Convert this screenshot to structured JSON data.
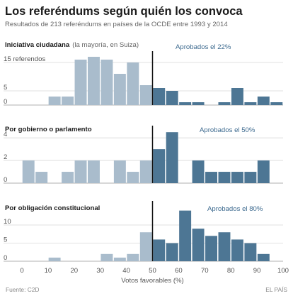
{
  "title": "Los referéndums según quién los convoca",
  "subtitle": "Resultados de 213 referéndums en países de la OCDE entre 1993 y 2014",
  "source": "Fuente: C2D",
  "brand": "EL PAÍS",
  "colors": {
    "below": "#a9bccc",
    "above": "#4d7694"
  },
  "chart_data": [
    {
      "type": "bar",
      "panel_title": "Iniciativa ciudadana",
      "panel_note": "(la mayoría, en Suiza)",
      "annotation": "Aprobados el 22%",
      "yticks": [
        0,
        5,
        15
      ],
      "ytick_labels": [
        "0",
        "5",
        "15 referendos"
      ],
      "ylim": [
        0,
        17.5
      ],
      "threshold": 50,
      "bin_width": 5,
      "bin_starts": [
        10,
        15,
        20,
        25,
        30,
        35,
        40,
        45,
        50,
        55,
        60,
        65,
        70,
        75,
        80,
        85,
        90,
        95
      ],
      "values": [
        3,
        3,
        16,
        17,
        16,
        11,
        15,
        7,
        6,
        5,
        1,
        1,
        0,
        1,
        6,
        1,
        3,
        1
      ]
    },
    {
      "type": "bar",
      "panel_title": "Por gobierno o parlamento",
      "panel_note": "",
      "annotation": "Aprobados el 50%",
      "yticks": [
        0,
        2,
        4
      ],
      "ytick_labels": [
        "0",
        "2",
        "4"
      ],
      "ylim": [
        0,
        4.7
      ],
      "threshold": 50,
      "bin_width": 5,
      "bin_starts": [
        0,
        5,
        15,
        20,
        25,
        35,
        40,
        45,
        50,
        55,
        65,
        70,
        75,
        80,
        85,
        90
      ],
      "values": [
        2,
        1,
        1,
        2,
        2,
        2,
        1,
        2,
        3,
        4.5,
        2,
        1,
        1,
        1,
        1,
        2
      ]
    },
    {
      "type": "bar",
      "panel_title": "Por obligación constitucional",
      "panel_note": "",
      "annotation": "Aprobados el 80%",
      "yticks": [
        0,
        5,
        10
      ],
      "ytick_labels": [
        "0",
        "5",
        "10"
      ],
      "ylim": [
        0,
        15.5
      ],
      "threshold": 50,
      "bin_width": 5,
      "bin_starts": [
        10,
        30,
        35,
        40,
        45,
        50,
        55,
        60,
        65,
        70,
        75,
        80,
        85,
        90
      ],
      "values": [
        1,
        2,
        1,
        2,
        8,
        6,
        5,
        14,
        9,
        7,
        8,
        6,
        5,
        2
      ]
    }
  ],
  "x_axis": {
    "xlim": [
      0,
      100
    ],
    "ticks": [
      0,
      10,
      20,
      30,
      40,
      50,
      60,
      70,
      80,
      90,
      100
    ],
    "xlabel": "Votos favorables (%)"
  }
}
